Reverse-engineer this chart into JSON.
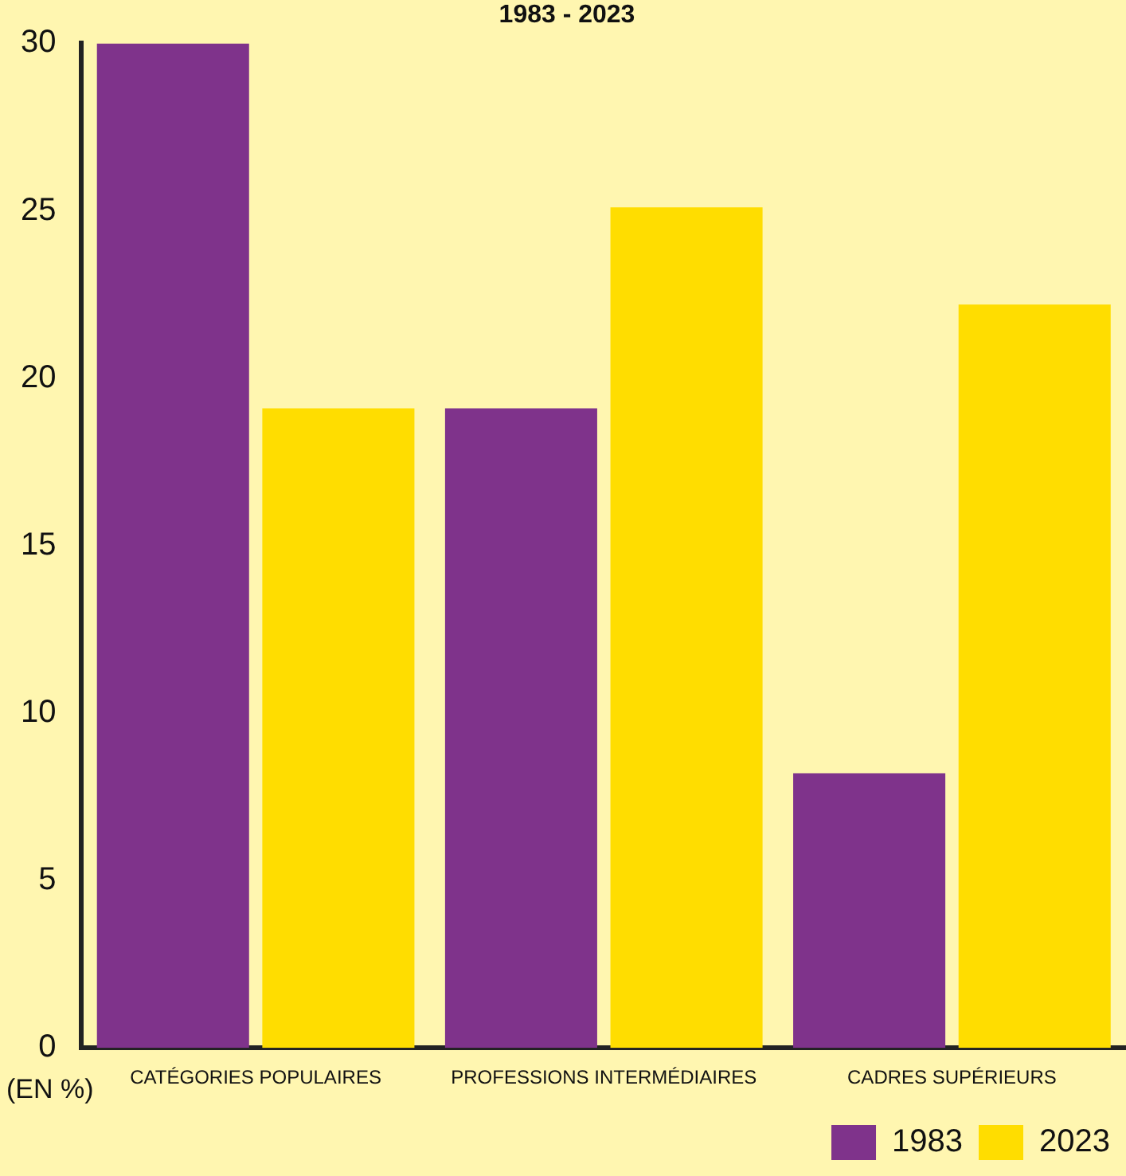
{
  "chart_data": {
    "type": "bar",
    "title": "1983 - 2023",
    "ylabel": "(EN %)",
    "categories": [
      "CATÉGORIES POPULAIRES",
      "PROFESSIONS INTERMÉDIAIRES",
      "CADRES SUPÉRIEURS"
    ],
    "series": [
      {
        "name": "1983",
        "color": "#7f338b",
        "values": [
          30,
          19.1,
          8.2
        ]
      },
      {
        "name": "2023",
        "color": "#ffdd00",
        "values": [
          19.1,
          25.1,
          22.2
        ]
      }
    ],
    "ylim": [
      0,
      30
    ],
    "yticks": [
      0,
      5,
      10,
      15,
      20,
      25,
      30
    ],
    "grid": false,
    "legend": "bottom right"
  }
}
